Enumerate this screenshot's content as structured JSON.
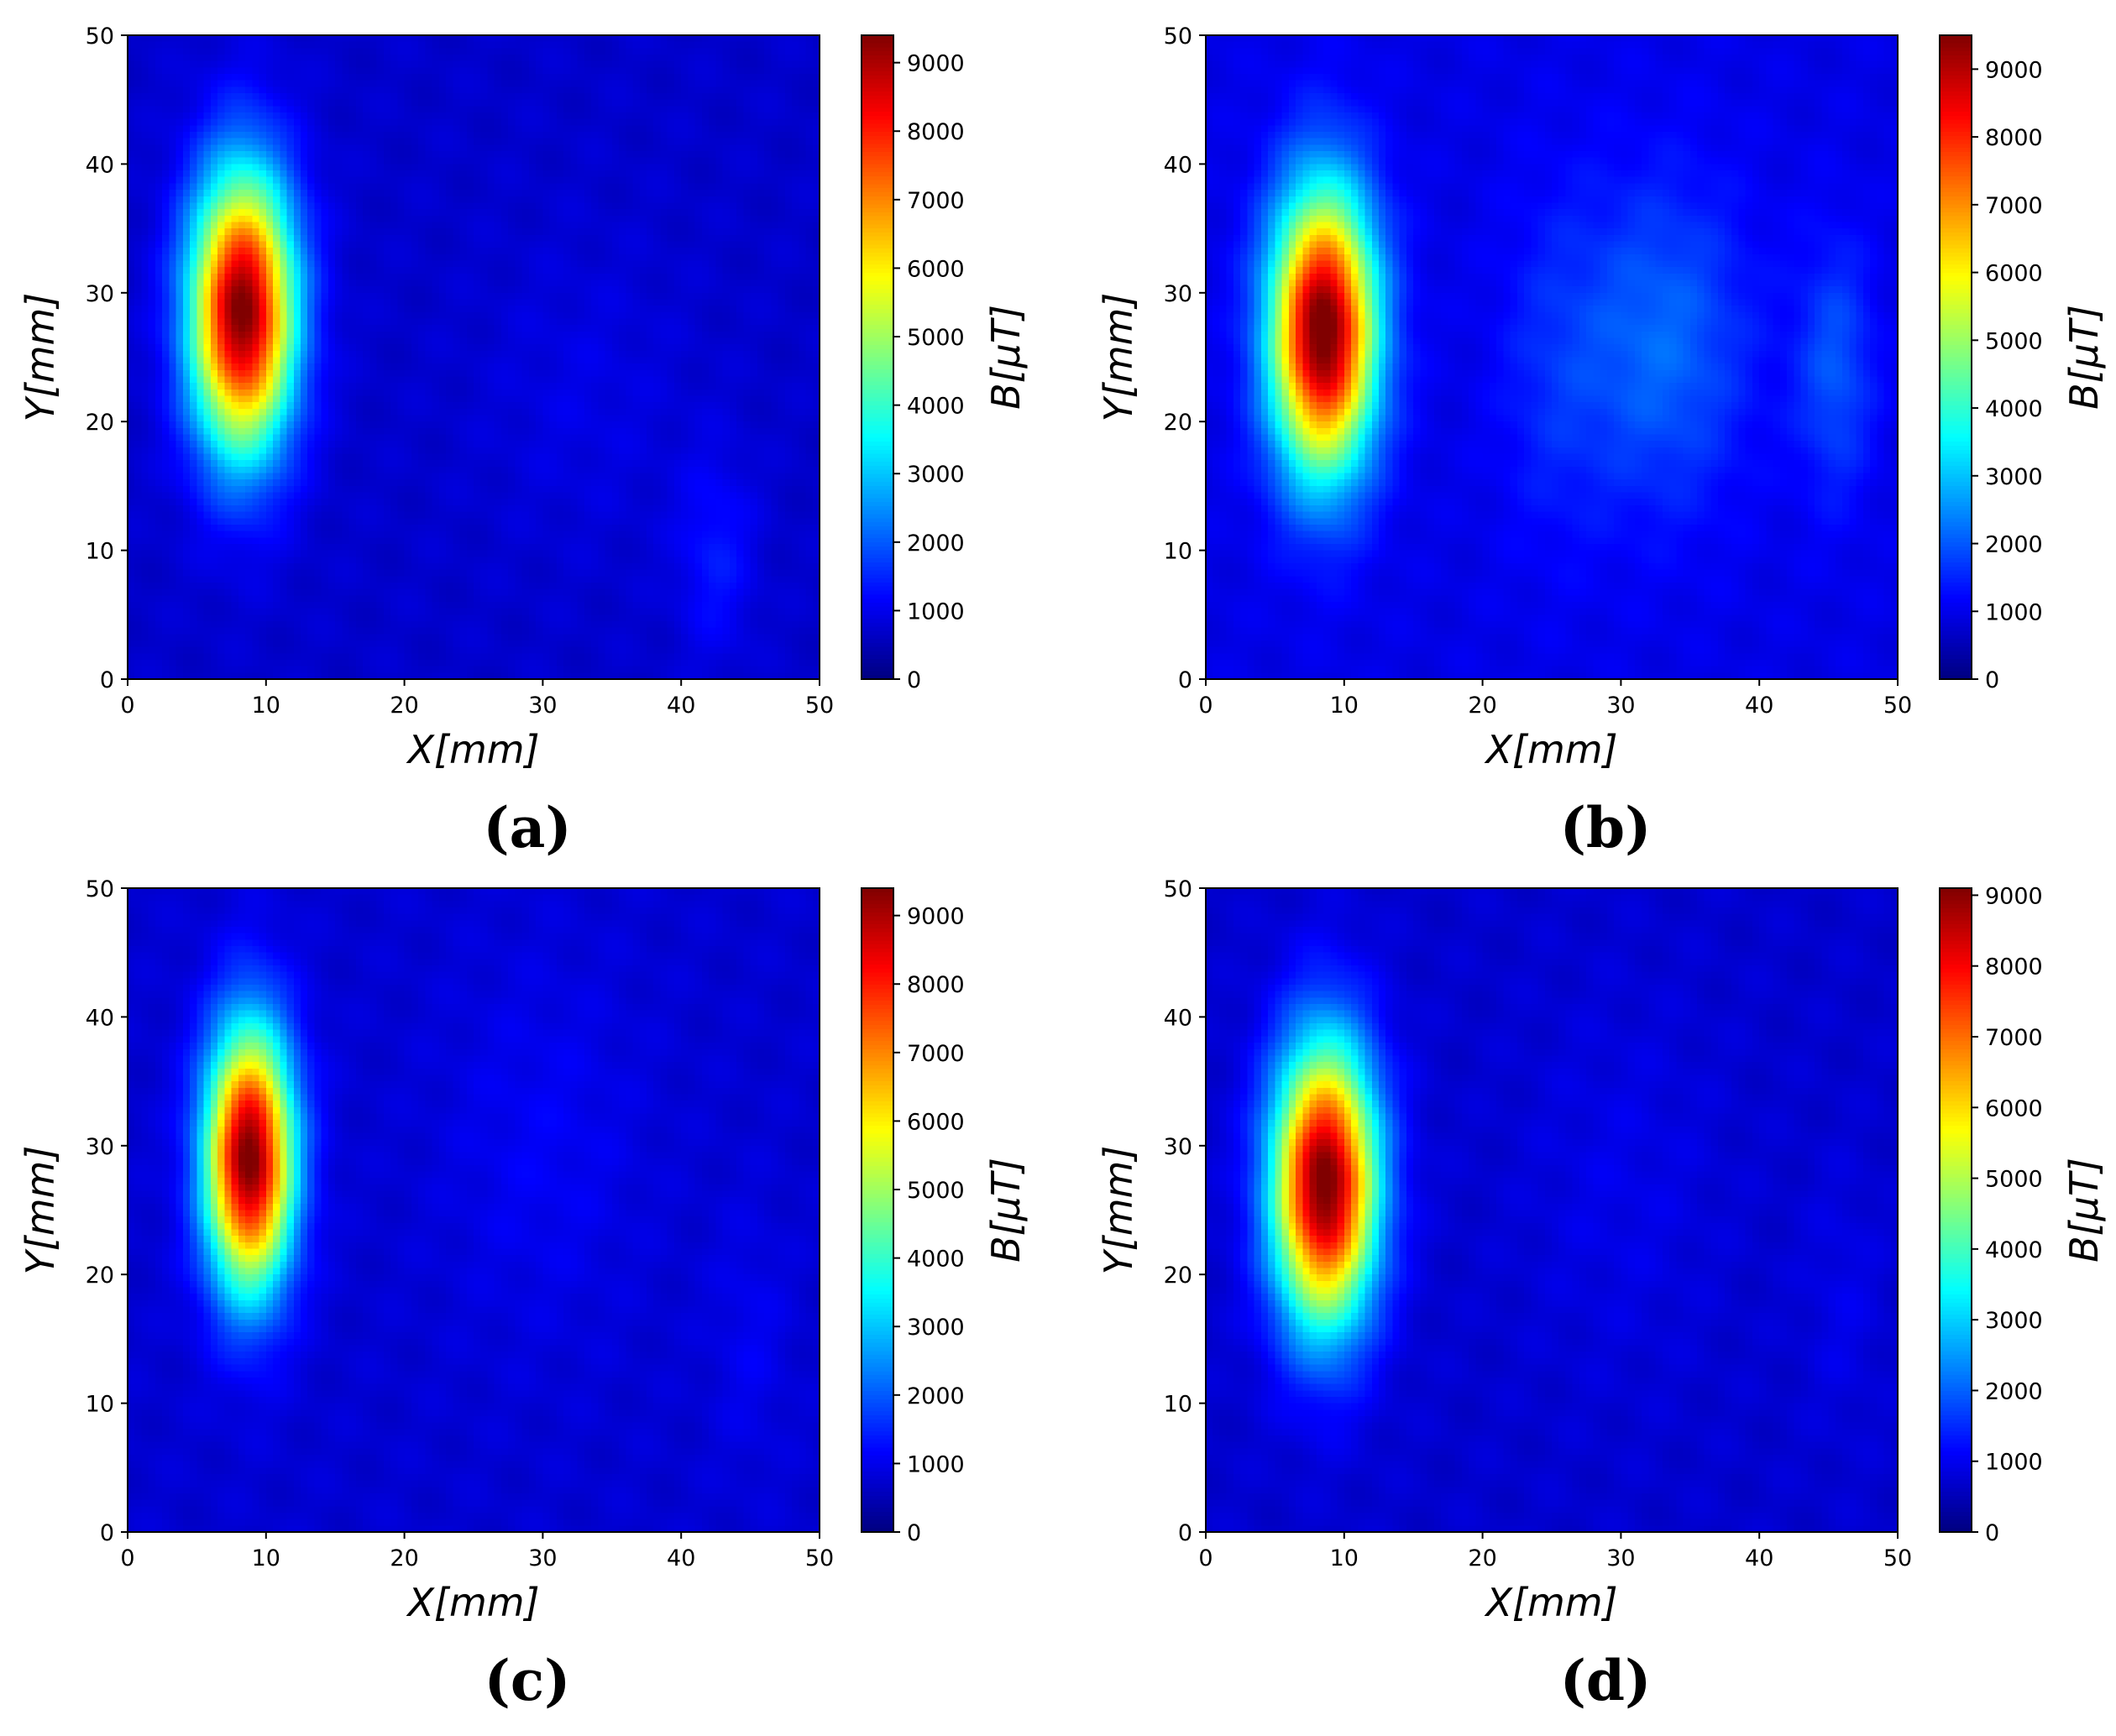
{
  "chart_data": [
    {
      "type": "heatmap",
      "panel_label": "(a)",
      "xlabel": "X[mm]",
      "ylabel": "Y[mm]",
      "colorbar_label": "B[μT]",
      "xlim": [
        0,
        50
      ],
      "ylim": [
        0,
        50
      ],
      "xticks": [
        "0",
        "10",
        "20",
        "30",
        "40",
        "50"
      ],
      "yticks": [
        "0",
        "10",
        "20",
        "30",
        "40",
        "50"
      ],
      "clim": [
        0,
        9400
      ],
      "colorbar_ticks": [
        "0",
        "1000",
        "2000",
        "3000",
        "4000",
        "5000",
        "6000",
        "7000",
        "8000",
        "9000"
      ],
      "colormap": "jet",
      "background_level": 700,
      "hotspots": [
        {
          "x": 8.3,
          "y": 28.5,
          "sx": 2.6,
          "sy": 7.5,
          "peak": 8800
        },
        {
          "x": 42.5,
          "y": 9.5,
          "sx": 2.0,
          "sy": 5.5,
          "peak": 650
        },
        {
          "x": 33.0,
          "y": 22.0,
          "sx": 5.0,
          "sy": 8.0,
          "peak": 250
        }
      ]
    },
    {
      "type": "heatmap",
      "panel_label": "(b)",
      "xlabel": "X[mm]",
      "ylabel": "Y[mm]",
      "colorbar_label": "B[μT]",
      "xlim": [
        0,
        50
      ],
      "ylim": [
        0,
        50
      ],
      "xticks": [
        "0",
        "10",
        "20",
        "30",
        "40",
        "50"
      ],
      "yticks": [
        "0",
        "10",
        "20",
        "30",
        "40",
        "50"
      ],
      "clim": [
        0,
        9500
      ],
      "colorbar_ticks": [
        "0",
        "1000",
        "2000",
        "3000",
        "4000",
        "5000",
        "6000",
        "7000",
        "8000",
        "9000"
      ],
      "colormap": "jet",
      "background_level": 950,
      "hotspots": [
        {
          "x": 8.5,
          "y": 27.0,
          "sx": 2.6,
          "sy": 7.5,
          "peak": 8900
        },
        {
          "x": 33.0,
          "y": 26.0,
          "sx": 4.5,
          "sy": 9.0,
          "peak": 1200
        },
        {
          "x": 45.5,
          "y": 24.0,
          "sx": 2.0,
          "sy": 7.0,
          "peak": 1000
        },
        {
          "x": 25.0,
          "y": 24.0,
          "sx": 3.0,
          "sy": 10.0,
          "peak": 500
        }
      ]
    },
    {
      "type": "heatmap",
      "panel_label": "(c)",
      "xlabel": "X[mm]",
      "ylabel": "Y[mm]",
      "colorbar_label": "B[μT]",
      "xlim": [
        0,
        50
      ],
      "ylim": [
        0,
        50
      ],
      "xticks": [
        "0",
        "10",
        "20",
        "30",
        "40",
        "50"
      ],
      "yticks": [
        "0",
        "10",
        "20",
        "30",
        "40",
        "50"
      ],
      "clim": [
        0,
        9400
      ],
      "colorbar_ticks": [
        "0",
        "1000",
        "2000",
        "3000",
        "4000",
        "5000",
        "6000",
        "7000",
        "8000",
        "9000"
      ],
      "colormap": "jet",
      "background_level": 750,
      "hotspots": [
        {
          "x": 8.8,
          "y": 29.0,
          "sx": 2.2,
          "sy": 7.0,
          "peak": 8800
        },
        {
          "x": 30.0,
          "y": 30.0,
          "sx": 5.0,
          "sy": 10.0,
          "peak": 350
        },
        {
          "x": 45.0,
          "y": 15.0,
          "sx": 2.0,
          "sy": 7.0,
          "peak": 300
        }
      ]
    },
    {
      "type": "heatmap",
      "panel_label": "(d)",
      "xlabel": "X[mm]",
      "ylabel": "Y[mm]",
      "colorbar_label": "B[μT]",
      "xlim": [
        0,
        50
      ],
      "ylim": [
        0,
        50
      ],
      "xticks": [
        "0",
        "10",
        "20",
        "30",
        "40",
        "50"
      ],
      "yticks": [
        "0",
        "10",
        "20",
        "30",
        "40",
        "50"
      ],
      "clim": [
        0,
        9100
      ],
      "colorbar_ticks": [
        "0",
        "1000",
        "2000",
        "3000",
        "4000",
        "5000",
        "6000",
        "7000",
        "8000",
        "9000"
      ],
      "colormap": "jet",
      "background_level": 700,
      "hotspots": [
        {
          "x": 8.6,
          "y": 27.0,
          "sx": 2.6,
          "sy": 7.5,
          "peak": 8600
        },
        {
          "x": 30.0,
          "y": 27.0,
          "sx": 5.0,
          "sy": 10.0,
          "peak": 250
        },
        {
          "x": 46.0,
          "y": 18.0,
          "sx": 2.0,
          "sy": 7.0,
          "peak": 250
        }
      ]
    }
  ]
}
